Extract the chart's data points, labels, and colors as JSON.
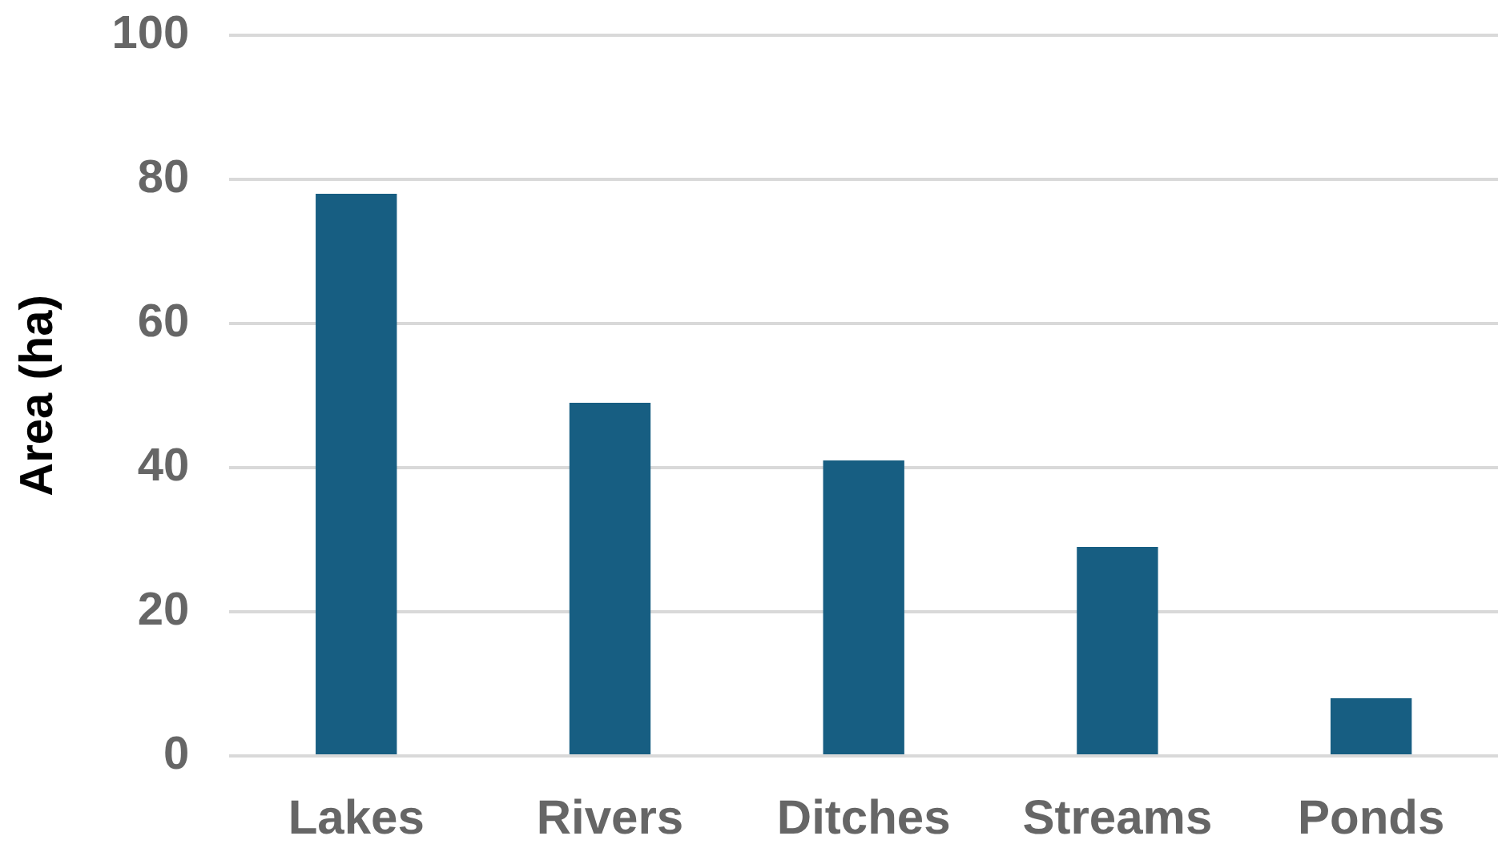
{
  "chart_data": {
    "type": "bar",
    "ylabel": "Area (ha)",
    "categories": [
      "Lakes",
      "Rivers",
      "Ditches",
      "Streams",
      "Ponds"
    ],
    "values": [
      78,
      49,
      41,
      29,
      8
    ],
    "color": "#175e82",
    "ylim": [
      0,
      100
    ],
    "yticks": [
      0,
      20,
      40,
      60,
      80,
      100
    ],
    "grid": "y"
  }
}
